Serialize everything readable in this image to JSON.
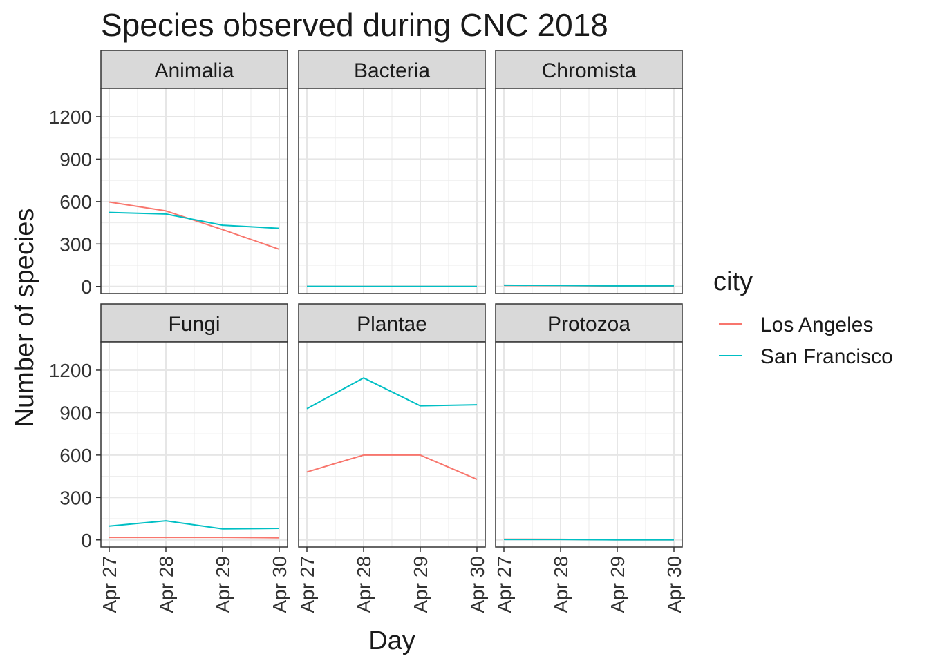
{
  "chart_data": {
    "type": "line",
    "title": "Species observed during CNC 2018",
    "xlabel": "Day",
    "ylabel": "Number of species",
    "x": [
      "Apr 27",
      "Apr 28",
      "Apr 29",
      "Apr 30"
    ],
    "ylim": [
      -50,
      1400
    ],
    "yticks": [
      0,
      300,
      600,
      900,
      1200
    ],
    "grid": true,
    "legend": {
      "title": "city",
      "position": "right",
      "entries": [
        {
          "name": "Los Angeles",
          "color": "#F8766D"
        },
        {
          "name": "San Francisco",
          "color": "#00BFC4"
        }
      ]
    },
    "panels": [
      {
        "name": "Animalia",
        "series": [
          {
            "name": "Los Angeles",
            "values": [
              597,
              534,
              402,
              263
            ]
          },
          {
            "name": "San Francisco",
            "values": [
              523,
              512,
              433,
              411
            ]
          }
        ]
      },
      {
        "name": "Bacteria",
        "series": [
          {
            "name": "Los Angeles",
            "values": [
              0,
              0,
              0,
              0
            ]
          },
          {
            "name": "San Francisco",
            "values": [
              1,
              0,
              0,
              0
            ]
          }
        ]
      },
      {
        "name": "Chromista",
        "series": [
          {
            "name": "Los Angeles",
            "values": [
              7,
              6,
              3,
              2
            ]
          },
          {
            "name": "San Francisco",
            "values": [
              9,
              7,
              4,
              5
            ]
          }
        ]
      },
      {
        "name": "Fungi",
        "series": [
          {
            "name": "Los Angeles",
            "values": [
              18,
              18,
              18,
              15
            ]
          },
          {
            "name": "San Francisco",
            "values": [
              98,
              135,
              78,
              82
            ]
          }
        ]
      },
      {
        "name": "Plantae",
        "series": [
          {
            "name": "Los Angeles",
            "values": [
              480,
              600,
              600,
              428
            ]
          },
          {
            "name": "San Francisco",
            "values": [
              928,
              1145,
              948,
              955
            ]
          }
        ]
      },
      {
        "name": "Protozoa",
        "series": [
          {
            "name": "Los Angeles",
            "values": [
              5,
              4,
              1,
              1
            ]
          },
          {
            "name": "San Francisco",
            "values": [
              3,
              3,
              1,
              1
            ]
          }
        ]
      }
    ]
  }
}
